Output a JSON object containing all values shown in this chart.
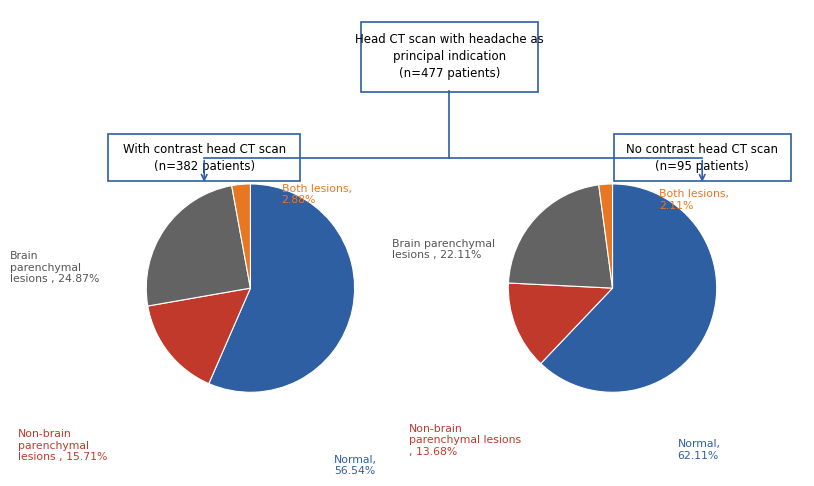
{
  "top_box": "Head CT scan with headache as\nprincipal indication\n(n=477 patients)",
  "left_box": "With contrast head CT scan\n(n=382 patients)",
  "right_box": "No contrast head CT scan\n(n=95 patients)",
  "pie1": {
    "values": [
      56.54,
      15.71,
      24.87,
      2.88
    ],
    "colors": [
      "#2E5FA3",
      "#C0392B",
      "#636363",
      "#E87722"
    ],
    "startangle": 90
  },
  "pie2": {
    "values": [
      62.11,
      13.68,
      22.11,
      2.11
    ],
    "colors": [
      "#2E5FA3",
      "#C0392B",
      "#636363",
      "#E87722"
    ],
    "startangle": 90
  },
  "box_color": "#2E5FA3",
  "arrow_color": "#2E5FA3",
  "label_color_normal": "#2E5FA3",
  "label_color_brain": "#555555",
  "label_color_nonbrain": "#C0392B",
  "label_color_both": "#E87722"
}
